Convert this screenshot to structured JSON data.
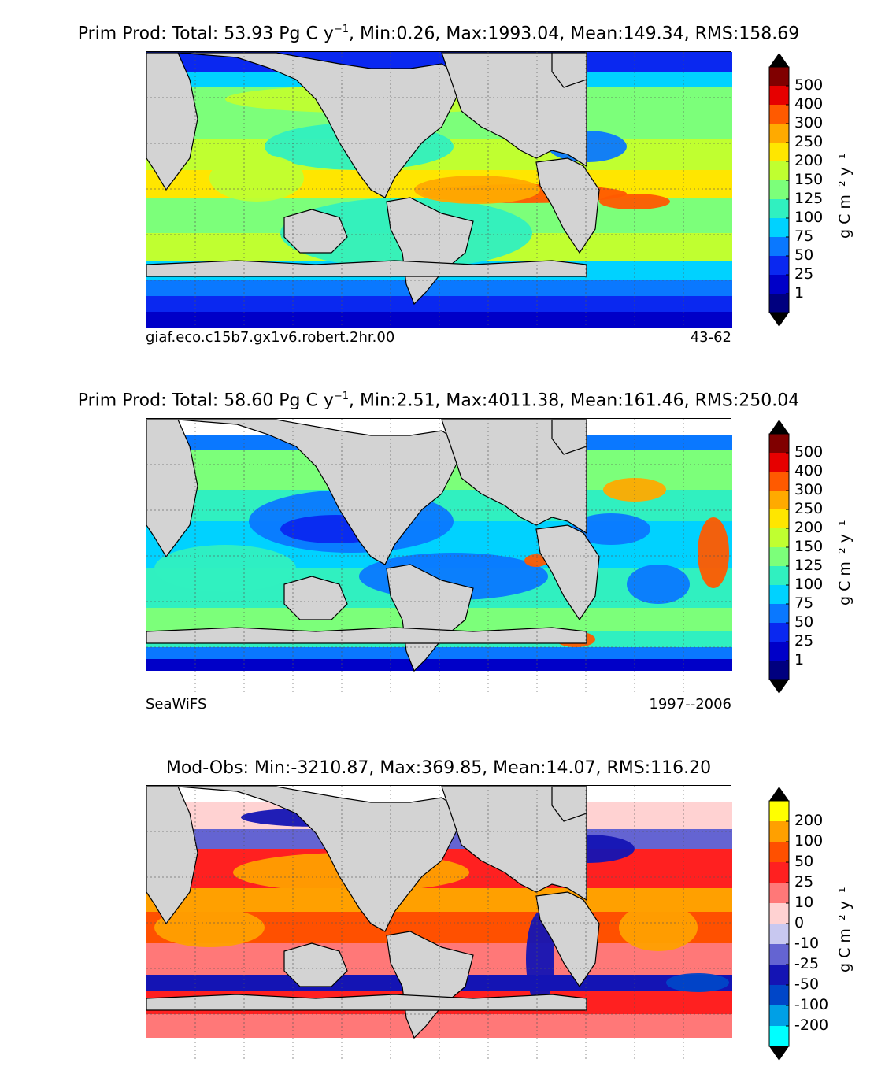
{
  "panels": [
    {
      "title_main": "Prim Prod: Total: 53.93 Pg C y",
      "title_sup": "−1",
      "title_rest": ", Min:0.26, Max:1993.04, Mean:149.34, RMS:158.69",
      "left_label": "giaf.eco.c15b7.gx1v6.robert.2hr.00",
      "right_label": "43-62"
    },
    {
      "title_main": "Prim Prod: Total: 58.60 Pg C y",
      "title_sup": "−1",
      "title_rest": ", Min:2.51, Max:4011.38, Mean:161.46, RMS:250.04",
      "left_label": "SeaWiFS",
      "right_label": "1997--2006"
    },
    {
      "title_main": "Mod-Obs: Min:-3210.87, Max:369.85, Mean:14.07, RMS:116.20",
      "title_sup": "",
      "title_rest": "",
      "left_label": "",
      "right_label": ""
    }
  ],
  "colorbars": {
    "productivity": {
      "unit_label": "g C m⁻² y⁻¹",
      "ticks": [
        "1",
        "25",
        "50",
        "75",
        "100",
        "125",
        "150",
        "200",
        "250",
        "300",
        "400",
        "500"
      ],
      "colors": [
        "#00007f",
        "#0000c8",
        "#0a28f0",
        "#0a78ff",
        "#00d2ff",
        "#30f0c0",
        "#7cff7a",
        "#c0ff30",
        "#ffe600",
        "#ffaa00",
        "#ff5a00",
        "#e60000",
        "#800000"
      ]
    },
    "difference": {
      "unit_label": "g C m⁻² y⁻¹",
      "ticks": [
        "-200",
        "-100",
        "-50",
        "-25",
        "-10",
        "0",
        "10",
        "25",
        "50",
        "100",
        "200"
      ],
      "colors": [
        "#00ffff",
        "#00a0e6",
        "#0046c8",
        "#1414b4",
        "#6464d2",
        "#c8c8f0",
        "#ffd2d2",
        "#ff7878",
        "#ff2020",
        "#ff5000",
        "#ffa000",
        "#ffff00"
      ]
    }
  },
  "chart_data": [
    {
      "type": "heatmap",
      "title": "Prim Prod: Total: 53.93 Pg C y⁻¹, Min:0.26, Max:1993.04, Mean:149.34, RMS:158.69",
      "field": "primary productivity (model)",
      "stats": {
        "total_PgC_per_y": 53.93,
        "min": 0.26,
        "max": 1993.04,
        "mean": 149.34,
        "rms": 158.69
      },
      "colorbar_ticks": [
        1,
        25,
        50,
        75,
        100,
        125,
        150,
        200,
        250,
        300,
        400,
        500
      ],
      "units": "g C m⁻² y⁻¹"
    },
    {
      "type": "heatmap",
      "title": "Prim Prod: Total: 58.60 Pg C y⁻¹, Min:2.51, Max:4011.38, Mean:161.46, RMS:250.04",
      "field": "primary productivity (observations)",
      "stats": {
        "total_PgC_per_y": 58.6,
        "min": 2.51,
        "max": 4011.38,
        "mean": 161.46,
        "rms": 250.04
      },
      "colorbar_ticks": [
        1,
        25,
        50,
        75,
        100,
        125,
        150,
        200,
        250,
        300,
        400,
        500
      ],
      "units": "g C m⁻² y⁻¹"
    },
    {
      "type": "heatmap",
      "title": "Mod-Obs: Min:-3210.87, Max:369.85, Mean:14.07, RMS:116.20",
      "field": "model minus observations",
      "stats": {
        "min": -3210.87,
        "max": 369.85,
        "mean": 14.07,
        "rms": 116.2
      },
      "colorbar_ticks": [
        -200,
        -100,
        -50,
        -25,
        -10,
        0,
        10,
        25,
        50,
        100,
        200
      ],
      "units": "g C m⁻² y⁻¹"
    }
  ]
}
